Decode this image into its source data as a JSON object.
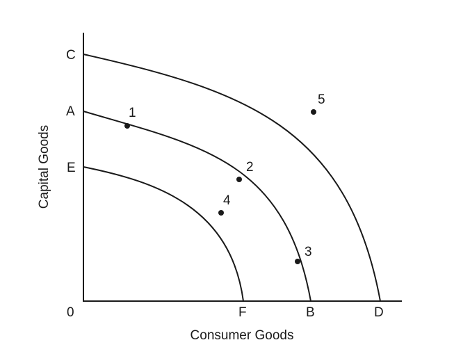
{
  "chart_data": {
    "type": "line",
    "xlabel": "Consumer Goods",
    "ylabel": "Capital Goods",
    "origin_label": "0",
    "x_ticks": [
      "F",
      "B",
      "D"
    ],
    "y_ticks": [
      "C",
      "A",
      "E"
    ],
    "curves": [
      {
        "name": "",
        "start_label": "E",
        "end_label": "F"
      },
      {
        "name": "",
        "start_label": "A",
        "end_label": "B"
      },
      {
        "name": "",
        "start_label": "C",
        "end_label": "D"
      }
    ],
    "points": [
      {
        "label": "1"
      },
      {
        "label": "2"
      },
      {
        "label": "3"
      },
      {
        "label": "4"
      },
      {
        "label": "5"
      }
    ]
  }
}
